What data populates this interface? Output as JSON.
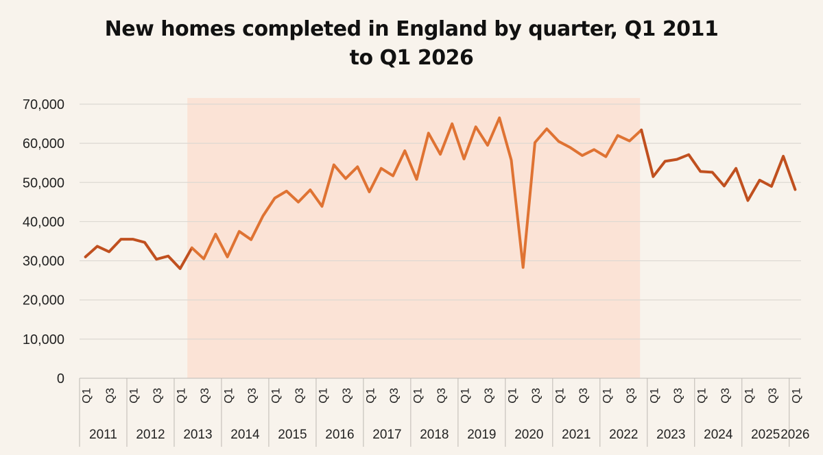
{
  "chart_data": {
    "type": "line",
    "title_lines": [
      "New homes completed in England by quarter, Q1 2011",
      "to Q1 2026"
    ],
    "xlabel": "",
    "ylabel": "",
    "ylim": [
      0,
      70000
    ],
    "y_ticks": [
      "0",
      "10,000",
      "20,000",
      "30,000",
      "40,000",
      "50,000",
      "60,000",
      "70,000"
    ],
    "grid": true,
    "legend": "none",
    "highlight_band": {
      "from": "2013 Q2",
      "to": "2022 Q4",
      "color": "#fbe3d6"
    },
    "years": [
      "2011",
      "2012",
      "2013",
      "2014",
      "2015",
      "2016",
      "2017",
      "2018",
      "2019",
      "2020",
      "2021",
      "2022",
      "2023",
      "2024",
      "2025",
      "2026"
    ],
    "quarter_labels": [
      "Q1",
      "Q3"
    ],
    "colors": {
      "before": "#c0501f",
      "during": "#df7333",
      "after": "#c0501f"
    },
    "x": [
      "2011 Q1",
      "2011 Q2",
      "2011 Q3",
      "2011 Q4",
      "2012 Q1",
      "2012 Q2",
      "2012 Q3",
      "2012 Q4",
      "2013 Q1",
      "2013 Q2",
      "2013 Q3",
      "2013 Q4",
      "2014 Q1",
      "2014 Q2",
      "2014 Q3",
      "2014 Q4",
      "2015 Q1",
      "2015 Q2",
      "2015 Q3",
      "2015 Q4",
      "2016 Q1",
      "2016 Q2",
      "2016 Q3",
      "2016 Q4",
      "2017 Q1",
      "2017 Q2",
      "2017 Q3",
      "2017 Q4",
      "2018 Q1",
      "2018 Q2",
      "2018 Q3",
      "2018 Q4",
      "2019 Q1",
      "2019 Q2",
      "2019 Q3",
      "2019 Q4",
      "2020 Q1",
      "2020 Q2",
      "2020 Q3",
      "2020 Q4",
      "2021 Q1",
      "2021 Q2",
      "2021 Q3",
      "2021 Q4",
      "2022 Q1",
      "2022 Q2",
      "2022 Q3",
      "2022 Q4",
      "2023 Q1",
      "2023 Q2",
      "2023 Q3",
      "2023 Q4",
      "2024 Q1",
      "2024 Q2",
      "2024 Q3",
      "2024 Q4",
      "2025 Q1",
      "2025 Q2",
      "2025 Q3",
      "2025 Q4",
      "2026 Q1"
    ],
    "values": [
      31000,
      33700,
      32300,
      35500,
      35500,
      34700,
      30400,
      31200,
      28000,
      33300,
      30500,
      36800,
      31000,
      37500,
      35400,
      41400,
      46000,
      47800,
      45000,
      48100,
      43900,
      54500,
      51000,
      54000,
      47600,
      53600,
      51700,
      58100,
      50800,
      62600,
      57200,
      65000,
      56000,
      64200,
      59500,
      66500,
      55700,
      28300,
      60200,
      63700,
      60500,
      58900,
      56900,
      58400,
      56600,
      62000,
      60600,
      63400,
      51500,
      55400,
      55900,
      57100,
      52800,
      52600,
      49100,
      53600,
      45400,
      50600,
      49000,
      56700,
      48200
    ]
  }
}
